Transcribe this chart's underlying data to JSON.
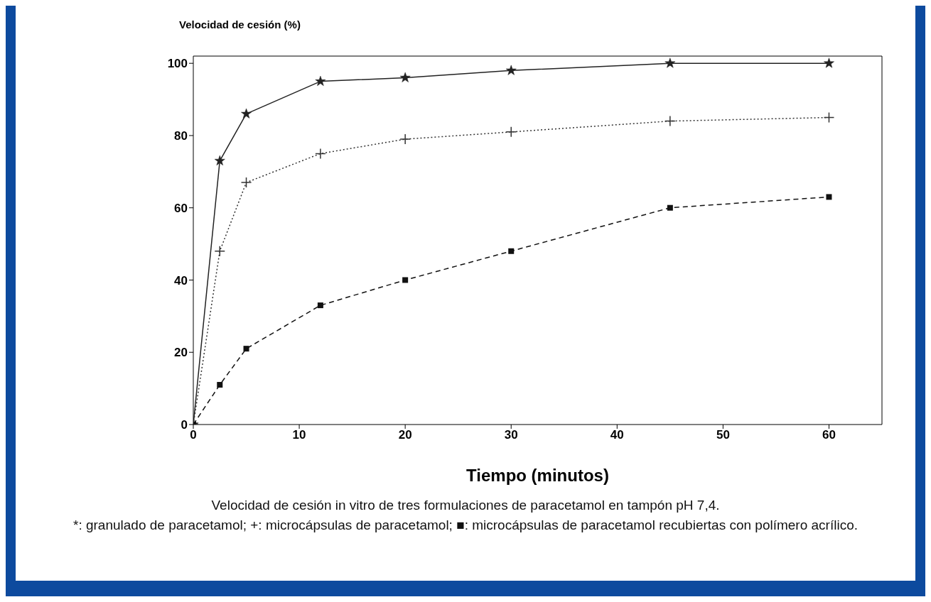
{
  "chart_data": {
    "type": "line",
    "ylabel": "Velocidad de cesión (%)",
    "xlabel": "Tiempo (minutos)",
    "xlim": [
      0,
      65
    ],
    "xticks": [
      0,
      10,
      20,
      30,
      40,
      50,
      60
    ],
    "ylim": [
      0,
      102
    ],
    "yticks": [
      0,
      20,
      40,
      60,
      80,
      100
    ],
    "x": [
      0,
      2.5,
      5,
      12,
      20,
      30,
      45,
      60
    ],
    "series": [
      {
        "color": "#222222",
        "marker": "star",
        "line_style": "solid",
        "values": [
          0,
          73,
          86,
          95,
          96,
          98,
          100,
          100
        ]
      },
      {
        "color": "#333333",
        "marker": "cross",
        "line_style": "dotted",
        "values": [
          0,
          48,
          67,
          75,
          79,
          81,
          84,
          85
        ]
      },
      {
        "color": "#111111",
        "marker": "square",
        "line_style": "dashed",
        "values": [
          0,
          11,
          21,
          33,
          40,
          48,
          60,
          63
        ]
      }
    ],
    "annotations": [
      "Velocidad de cesión in vitro de tres formulaciones de paracetamol en tampón pH 7,4.",
      "*: granulado de paracetamol; +: microcápsulas de paracetamol; ■: microcápsulas de paracetamol recubiertas con polímero acrílico."
    ]
  }
}
